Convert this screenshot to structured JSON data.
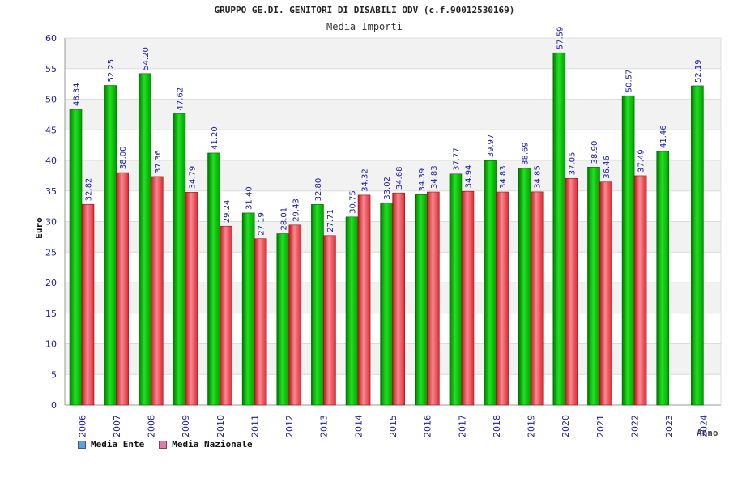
{
  "chart_data": {
    "type": "bar",
    "title": "GRUPPO GE.DI. GENITORI DI DISABILI ODV (c.f.90012530169)",
    "subtitle": "Media Importi",
    "ylabel": "Euro",
    "xlabel": "Anno",
    "ylim": [
      0,
      60
    ],
    "yticks": [
      0,
      5,
      10,
      15,
      20,
      25,
      30,
      35,
      40,
      45,
      50,
      55,
      60
    ],
    "grid": true,
    "legend_position": "bottom-left",
    "categories": [
      "2006",
      "2007",
      "2008",
      "2009",
      "2010",
      "2011",
      "2012",
      "2013",
      "2014",
      "2015",
      "2016",
      "2017",
      "2018",
      "2019",
      "2020",
      "2021",
      "2022",
      "2023",
      "2024"
    ],
    "series": [
      {
        "name": "Media Ente",
        "color": "#00b000",
        "values": [
          48.34,
          52.25,
          54.2,
          47.62,
          41.2,
          31.4,
          28.01,
          32.8,
          30.75,
          33.02,
          34.39,
          37.77,
          39.97,
          38.69,
          57.59,
          38.9,
          50.57,
          41.46,
          52.19
        ],
        "labels": [
          "48.34",
          "52.25",
          "54.20",
          "47.62",
          "41.20",
          "31.40",
          "28.01",
          "32.80",
          "30.75",
          "33.02",
          "34.39",
          "37.77",
          "39.97",
          "38.69",
          "57.59",
          "38.90",
          "50.57",
          "41.46",
          "52.19"
        ]
      },
      {
        "name": "Media Nazionale",
        "color": "#e8303a",
        "values": [
          32.82,
          38.0,
          37.36,
          34.79,
          29.24,
          27.19,
          29.43,
          27.71,
          34.32,
          34.68,
          34.83,
          34.94,
          34.83,
          34.85,
          37.05,
          36.46,
          37.49,
          null,
          null
        ],
        "labels": [
          "32.82",
          "38.00",
          "37.36",
          "34.79",
          "29.24",
          "27.19",
          "29.43",
          "27.71",
          "34.32",
          "34.68",
          "34.83",
          "34.94",
          "34.83",
          "34.85",
          "37.05",
          "36.46",
          "37.49",
          "",
          ""
        ]
      }
    ],
    "legend_swatches": [
      "#5aa0e6",
      "#e07aa8"
    ]
  }
}
